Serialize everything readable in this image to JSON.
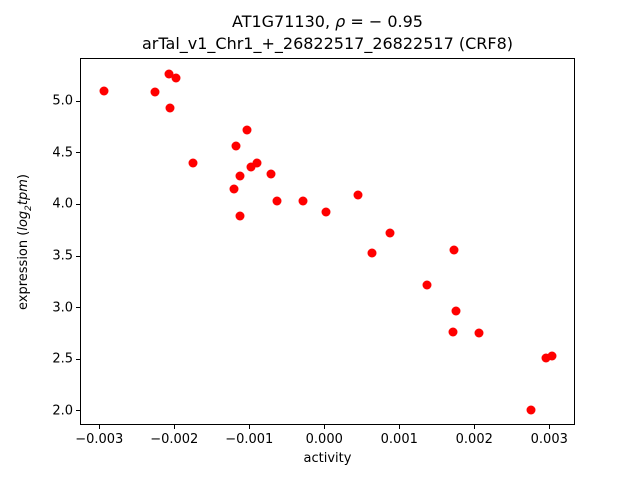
{
  "figure": {
    "title_line1": {
      "prefix": "AT1G71130, ",
      "rho": "ρ",
      "suffix": " = − 0.95"
    },
    "title_line2": "arTal_v1_Chr1_+_26822517_26822517 (CRF8)",
    "xlabel": "activity",
    "ylabel": {
      "prefix": "expression (",
      "log": "log",
      "sub": "2",
      "tpm": "tpm",
      "suffix": ")"
    }
  },
  "chart_data": {
    "type": "scatter",
    "title": "AT1G71130, ρ = −0.95",
    "subtitle": "arTal_v1_Chr1_+_26822517_26822517 (CRF8)",
    "xlabel": "activity",
    "ylabel": "expression (log2tpm)",
    "correlation_rho": -0.95,
    "marker_color": "#ff0000",
    "grid": false,
    "legend": false,
    "xlim": [
      -0.003257,
      0.003343
    ],
    "ylim": [
      1.861,
      5.421
    ],
    "x_ticks": [
      {
        "value": -0.003,
        "label": "−0.003"
      },
      {
        "value": -0.002,
        "label": "−0.002"
      },
      {
        "value": -0.001,
        "label": "−0.001"
      },
      {
        "value": 0.0,
        "label": "0.000"
      },
      {
        "value": 0.001,
        "label": "0.001"
      },
      {
        "value": 0.002,
        "label": "0.002"
      },
      {
        "value": 0.003,
        "label": "0.003"
      }
    ],
    "y_ticks": [
      {
        "value": 2.0,
        "label": "2.0"
      },
      {
        "value": 2.5,
        "label": "2.5"
      },
      {
        "value": 3.0,
        "label": "3.0"
      },
      {
        "value": 3.5,
        "label": "3.5"
      },
      {
        "value": 4.0,
        "label": "4.0"
      },
      {
        "value": 4.5,
        "label": "4.5"
      },
      {
        "value": 5.0,
        "label": "5.0"
      }
    ],
    "points": [
      [
        -0.00294,
        5.1
      ],
      [
        -0.00226,
        5.09
      ],
      [
        -0.00207,
        5.27
      ],
      [
        -0.00198,
        5.23
      ],
      [
        -0.00206,
        4.94
      ],
      [
        -0.00175,
        4.4
      ],
      [
        -0.00118,
        4.57
      ],
      [
        -0.00103,
        4.72
      ],
      [
        -0.00121,
        4.15
      ],
      [
        -0.00113,
        4.28
      ],
      [
        -0.00113,
        3.89
      ],
      [
        -0.00098,
        4.36
      ],
      [
        -0.0009,
        4.4
      ],
      [
        -0.00071,
        4.3
      ],
      [
        -0.00063,
        4.03
      ],
      [
        -0.00029,
        4.03
      ],
      [
        2e-05,
        3.93
      ],
      [
        0.00045,
        4.09
      ],
      [
        0.00063,
        3.53
      ],
      [
        0.00087,
        3.72
      ],
      [
        0.00137,
        3.22
      ],
      [
        0.00173,
        3.56
      ],
      [
        0.00175,
        2.97
      ],
      [
        0.00172,
        2.76
      ],
      [
        0.00206,
        2.75
      ],
      [
        0.00275,
        2.01
      ],
      [
        0.00295,
        2.51
      ],
      [
        0.00304,
        2.53
      ]
    ]
  }
}
